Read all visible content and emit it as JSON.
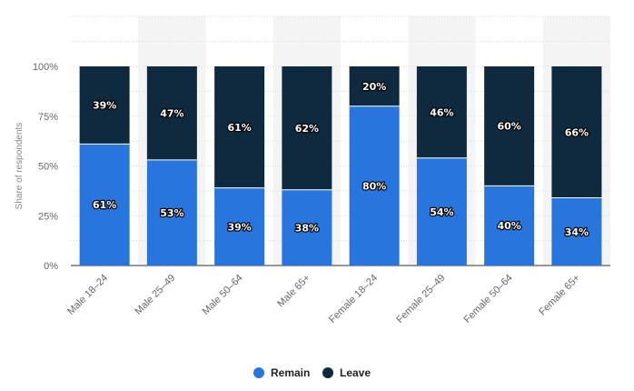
{
  "chart_data": {
    "type": "bar",
    "stacked": true,
    "categories": [
      "Male 18–24",
      "Male 25–49",
      "Male 50–64",
      "Male 65+",
      "Female 18–24",
      "Female 25–49",
      "Female 50–64",
      "Female 65+"
    ],
    "series": [
      {
        "name": "Remain",
        "color": "#2876dd",
        "values": [
          61,
          53,
          39,
          38,
          80,
          54,
          40,
          34
        ],
        "labels": [
          "61%",
          "53%",
          "39%",
          "38%",
          "80%",
          "54%",
          "40%",
          "34%"
        ]
      },
      {
        "name": "Leave",
        "color": "#0f2a3e",
        "values": [
          39,
          47,
          61,
          62,
          20,
          46,
          60,
          66
        ],
        "labels": [
          "39%",
          "47%",
          "61%",
          "62%",
          "20%",
          "46%",
          "60%",
          "66%"
        ]
      }
    ],
    "ylabel": "Share of respondents",
    "xlabel": "",
    "ylim": [
      0,
      100
    ],
    "yticks": [
      0,
      25,
      50,
      75,
      100
    ],
    "ytick_labels": [
      "0%",
      "25%",
      "50%",
      "75%",
      "100%"
    ],
    "grid": true,
    "legend_position": "bottom-center"
  }
}
